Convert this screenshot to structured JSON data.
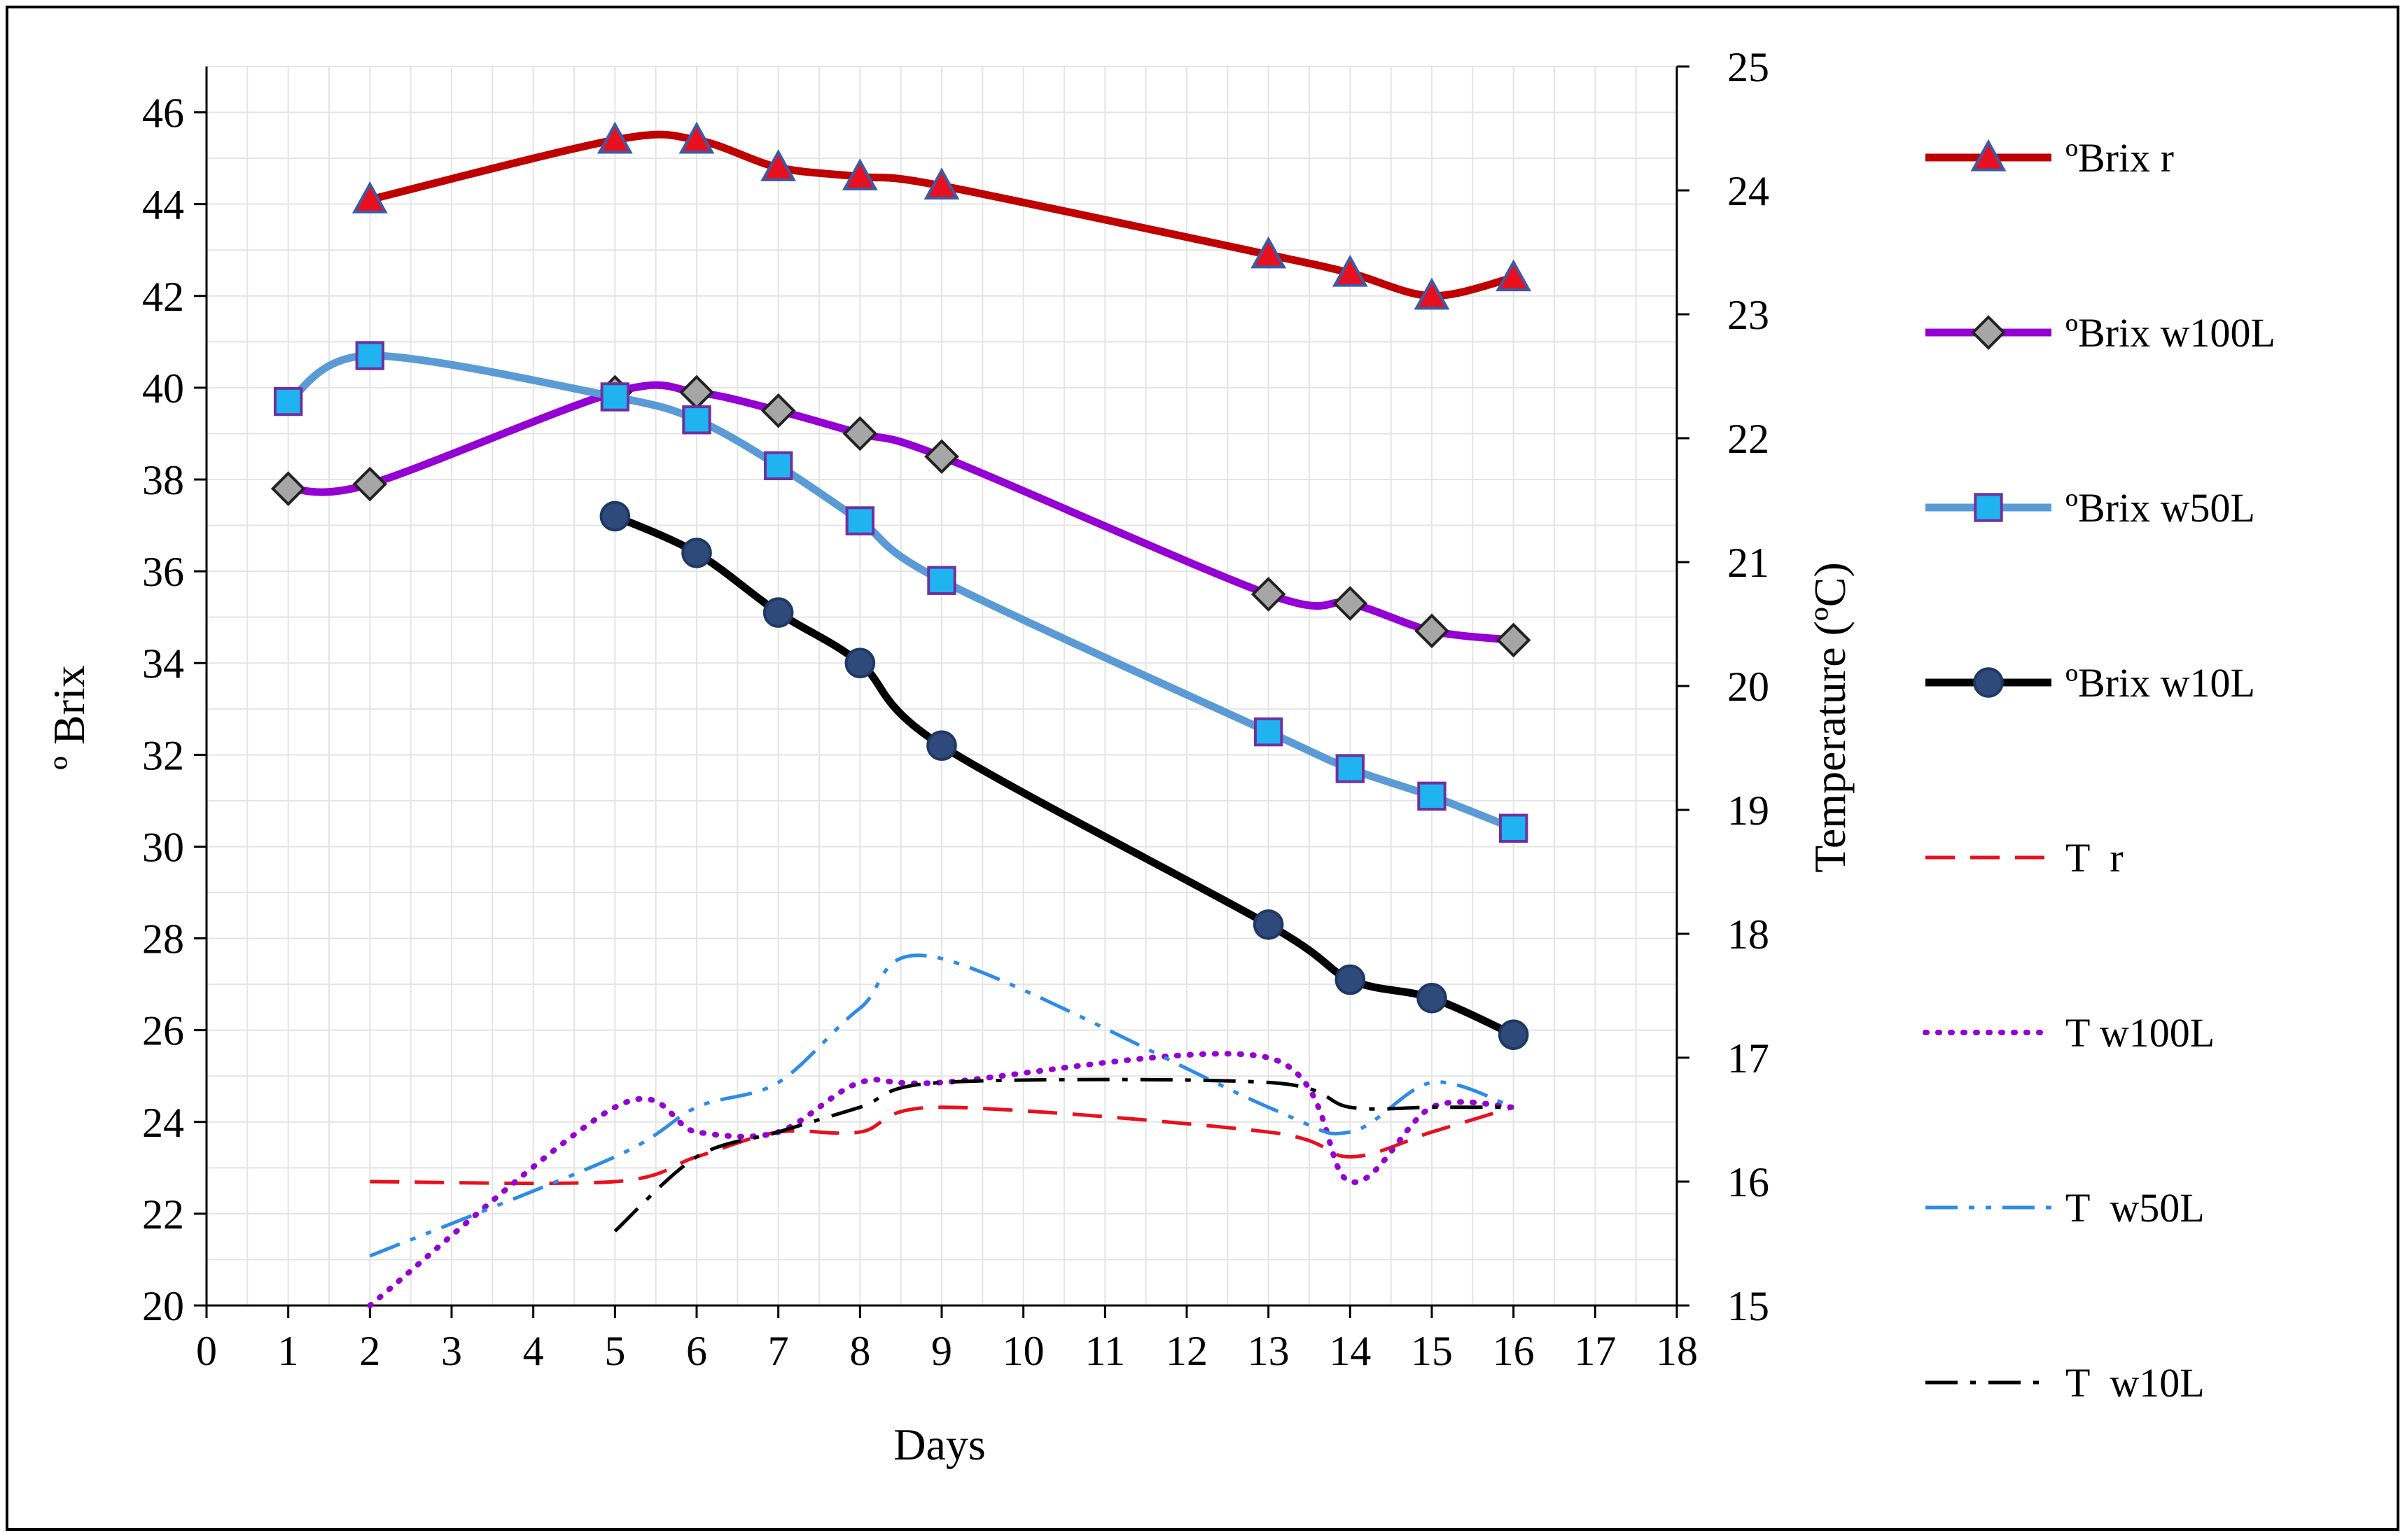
{
  "chart_data": {
    "type": "line",
    "title": "",
    "xlabel": "Days",
    "ylabel": "º Brix",
    "y2label": "Temperature (ºC)",
    "xlim": [
      0,
      18
    ],
    "ylim": [
      20,
      47
    ],
    "y2lim": [
      15,
      25
    ],
    "x_ticks": [
      0,
      1,
      2,
      3,
      4,
      5,
      6,
      7,
      8,
      9,
      10,
      11,
      12,
      13,
      14,
      15,
      16,
      17,
      18
    ],
    "y_ticks": [
      20,
      22,
      24,
      26,
      28,
      30,
      32,
      34,
      36,
      38,
      40,
      42,
      44,
      46
    ],
    "y2_ticks": [
      15,
      16,
      17,
      18,
      19,
      20,
      21,
      22,
      23,
      24,
      25
    ],
    "grid": true,
    "legend_position": "right",
    "series": [
      {
        "name": "ºBrix r",
        "axis": "left",
        "color": "#C00000",
        "marker": "triangle",
        "marker_fill": "#E8101E",
        "marker_stroke": "#3A5BA8",
        "dash": "solid",
        "width": 11,
        "x": [
          2,
          5,
          6,
          7,
          8,
          9,
          13,
          14,
          15,
          16
        ],
        "y": [
          44.1,
          45.4,
          45.4,
          44.8,
          44.6,
          44.4,
          42.9,
          42.5,
          42.0,
          42.4
        ]
      },
      {
        "name": "ºBrix w100L",
        "axis": "left",
        "color": "#9400D3",
        "marker": "diamond",
        "marker_fill": "#A6A6A6",
        "marker_stroke": "#222222",
        "dash": "solid",
        "width": 11,
        "x": [
          1,
          2,
          5,
          6,
          7,
          8,
          9,
          13,
          14,
          15,
          16
        ],
        "y": [
          37.8,
          37.9,
          39.9,
          39.9,
          39.5,
          39.0,
          38.5,
          35.5,
          35.3,
          34.7,
          34.5
        ]
      },
      {
        "name": "ºBrix w50L",
        "axis": "left",
        "color": "#5B9BD5",
        "marker": "square",
        "marker_fill": "#1FB4F0",
        "marker_stroke": "#7030A0",
        "dash": "solid",
        "width": 11,
        "x": [
          1,
          2,
          5,
          6,
          7,
          8,
          9,
          13,
          14,
          15,
          16
        ],
        "y": [
          39.7,
          40.7,
          39.8,
          39.3,
          38.3,
          37.1,
          35.8,
          32.5,
          31.7,
          31.1,
          30.4
        ]
      },
      {
        "name": "ºBrix w10L",
        "axis": "left",
        "color": "#000000",
        "marker": "circle",
        "marker_fill": "#2E4A7A",
        "marker_stroke": "#1F3864",
        "dash": "solid",
        "width": 11,
        "x": [
          5,
          6,
          7,
          8,
          9,
          13,
          14,
          15,
          16
        ],
        "y": [
          37.2,
          36.4,
          35.1,
          34.0,
          32.2,
          28.3,
          27.1,
          26.7,
          25.9
        ]
      },
      {
        "name": "T  r",
        "axis": "right",
        "color": "#E8101E",
        "marker": "none",
        "dash": "dashed",
        "width": 5,
        "x": [
          2,
          5,
          6,
          7,
          8,
          9,
          13,
          14,
          15,
          16
        ],
        "y": [
          16.0,
          16.0,
          16.2,
          16.4,
          16.4,
          16.6,
          16.4,
          16.2,
          16.4,
          16.6
        ]
      },
      {
        "name": "T w100L",
        "axis": "right",
        "color": "#9400D3",
        "marker": "none",
        "dash": "dotted",
        "width": 8,
        "x": [
          2,
          5,
          6,
          7,
          8,
          9,
          13,
          14,
          15,
          16
        ],
        "y": [
          15.0,
          16.6,
          16.4,
          16.4,
          16.8,
          16.8,
          17.0,
          16.0,
          16.6,
          16.6
        ]
      },
      {
        "name": "T  w50L",
        "axis": "right",
        "color": "#2E8BE8",
        "marker": "none",
        "dash": "dashdotdot",
        "width": 5,
        "x": [
          2,
          5,
          6,
          7,
          8,
          9,
          13,
          14,
          15,
          16
        ],
        "y": [
          15.4,
          16.2,
          16.6,
          16.8,
          17.4,
          17.8,
          16.6,
          16.4,
          16.8,
          16.6
        ]
      },
      {
        "name": "T  w10L",
        "axis": "right",
        "color": "#000000",
        "marker": "none",
        "dash": "dashdot",
        "width": 5,
        "x": [
          5,
          6,
          7,
          8,
          9,
          13,
          14,
          15,
          16
        ],
        "y": [
          15.6,
          16.2,
          16.4,
          16.6,
          16.8,
          16.8,
          16.6,
          16.6,
          16.6
        ]
      }
    ]
  }
}
